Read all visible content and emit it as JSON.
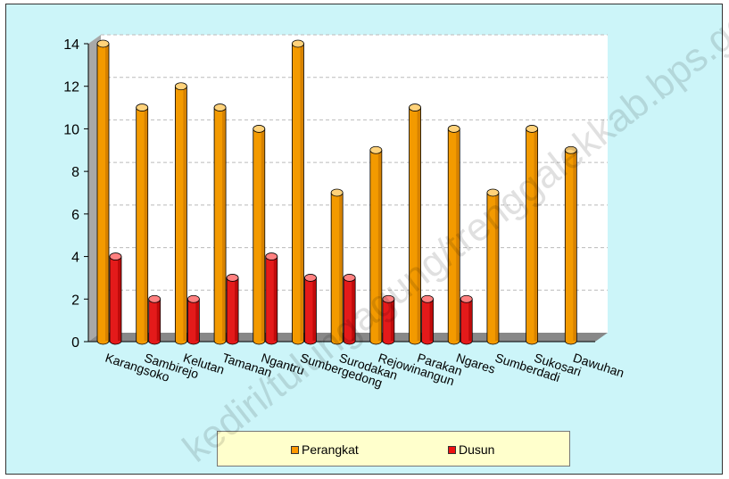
{
  "chart_data": {
    "type": "bar",
    "categories": [
      "Karangsoko",
      "Sambirejo",
      "Kelutan",
      "Tamanan",
      "Ngantru",
      "Sumbergedong",
      "Surodakan",
      "Rejowinangun",
      "Parakan",
      "Ngares",
      "Sumberdadi",
      "Sukosari",
      "Dawuhan"
    ],
    "series": [
      {
        "name": "Perangkat",
        "color": "#ff9900",
        "values": [
          14,
          11,
          12,
          11,
          10,
          14,
          7,
          9,
          11,
          10,
          7,
          10,
          9
        ]
      },
      {
        "name": "Dusun",
        "color": "#ee1111",
        "values": [
          4,
          2,
          2,
          3,
          4,
          3,
          3,
          2,
          2,
          2,
          0,
          0,
          0
        ]
      }
    ],
    "ylim": [
      0,
      14
    ],
    "yticks": [
      0,
      2,
      4,
      6,
      8,
      10,
      12,
      14
    ],
    "grid": true,
    "legend_position": "bottom",
    "title": "",
    "xlabel": "",
    "ylabel": ""
  },
  "watermark": "kediri/tulungagung/trenggalekkab.bps.go.id"
}
